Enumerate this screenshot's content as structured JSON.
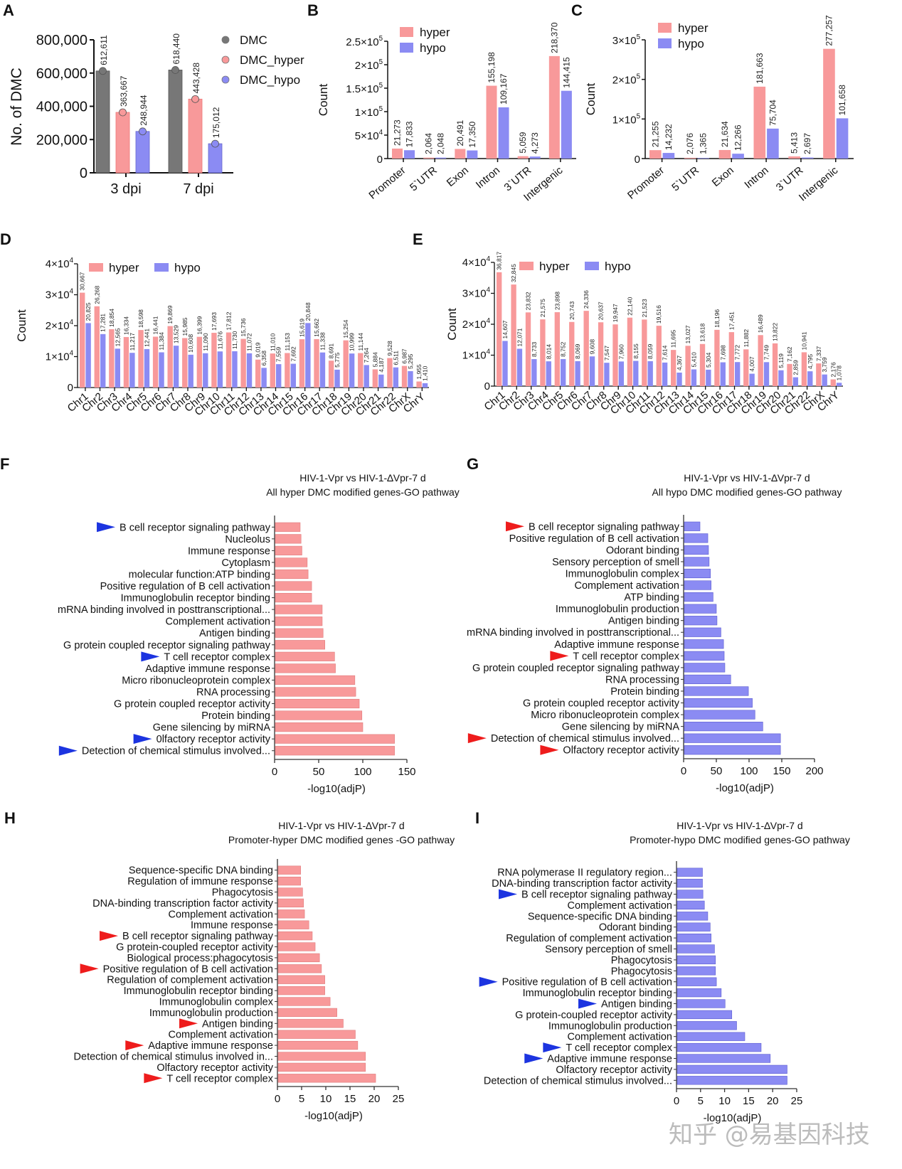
{
  "colors": {
    "dmc": "#777777",
    "hyper": "#f8999a",
    "hypo": "#8b8bf3",
    "arrow_blue": "#1c34e0",
    "arrow_red": "#ee1c1c"
  },
  "watermark": "知乎 @易基因科技",
  "chart_data": [
    {
      "id": "A",
      "panel_letter": "A",
      "type": "bar",
      "title": "",
      "xlabel": "",
      "ylabel": "No. of DMC",
      "categories": [
        "3 dpi",
        "7 dpi"
      ],
      "series": [
        {
          "name": "DMC",
          "values": [
            612611,
            618440
          ],
          "labels": [
            "612,611",
            "618,440"
          ]
        },
        {
          "name": "DMC_hyper",
          "values": [
            363667,
            443428
          ],
          "labels": [
            "363,667",
            "443,428"
          ]
        },
        {
          "name": "DMC_hypo",
          "values": [
            248944,
            175012
          ],
          "labels": [
            "248,944",
            "175,012"
          ]
        }
      ],
      "ylim": [
        0,
        800000
      ],
      "yticks": [
        0,
        200000,
        400000,
        600000,
        800000
      ],
      "ytick_labels": [
        "0",
        "200,000",
        "400,000",
        "600,000",
        "800,000"
      ],
      "legend": [
        "DMC",
        "DMC_hyper",
        "DMC_hypo"
      ],
      "legend_position": "right"
    },
    {
      "id": "B",
      "panel_letter": "B",
      "type": "bar",
      "title": "",
      "xlabel": "",
      "ylabel": "Count",
      "categories": [
        "Promoter",
        "5`UTR",
        "Exon",
        "Intron",
        "3`UTR",
        "Intergenic"
      ],
      "series": [
        {
          "name": "hyper",
          "values": [
            21273,
            2064,
            20491,
            155198,
            5059,
            218370
          ],
          "labels": [
            "21,273",
            "2,064",
            "20,491",
            "155,198",
            "5,059",
            "218,370"
          ]
        },
        {
          "name": "hypo",
          "values": [
            17833,
            2048,
            17350,
            109167,
            4273,
            144415
          ],
          "labels": [
            "17,833",
            "2,048",
            "17,350",
            "109,167",
            "4,273",
            "144,415"
          ]
        }
      ],
      "ylim": [
        0,
        250000
      ],
      "yticks": [
        0,
        50000,
        100000,
        150000,
        200000,
        250000
      ],
      "ytick_labels": [
        [
          "0",
          ""
        ],
        [
          "5×10",
          "4"
        ],
        [
          "1×10",
          "5"
        ],
        [
          "1.5×10",
          "5"
        ],
        [
          "2×10",
          "5"
        ],
        [
          "2.5×10",
          "5"
        ]
      ],
      "legend": [
        "hyper",
        "hypo"
      ],
      "legend_position": "top-left"
    },
    {
      "id": "C",
      "panel_letter": "C",
      "type": "bar",
      "title": "",
      "xlabel": "",
      "ylabel": "Count",
      "categories": [
        "Promoter",
        "5`UTR",
        "Exon",
        "Intron",
        "3`UTR",
        "Intergenic"
      ],
      "series": [
        {
          "name": "hyper",
          "values": [
            21255,
            2076,
            21634,
            181663,
            5413,
            277257
          ],
          "labels": [
            "21,255",
            "2,076",
            "21,634",
            "181,663",
            "5,413",
            "277,257"
          ]
        },
        {
          "name": "hypo",
          "values": [
            14232,
            1365,
            12266,
            75704,
            2697,
            101658
          ],
          "labels": [
            "14,232",
            "1,365",
            "12,266",
            "75,704",
            "2,697",
            "101,658"
          ]
        }
      ],
      "ylim": [
        0,
        300000
      ],
      "yticks": [
        0,
        100000,
        200000,
        300000
      ],
      "ytick_labels": [
        [
          "0",
          ""
        ],
        [
          "1×10",
          "5"
        ],
        [
          "2×10",
          "5"
        ],
        [
          "3×10",
          "5"
        ]
      ],
      "legend": [
        "hyper",
        "hypo"
      ],
      "legend_position": "top-left"
    },
    {
      "id": "D",
      "panel_letter": "D",
      "type": "bar",
      "title": "",
      "xlabel": "",
      "ylabel": "Count",
      "categories": [
        "Chr1",
        "Chr2",
        "Chr3",
        "Chr4",
        "Chr5",
        "Chr6",
        "Chr7",
        "Chr8",
        "Chr9",
        "Chr10",
        "Chr11",
        "Chr12",
        "Chr13",
        "Chr14",
        "Chr15",
        "Chr16",
        "Chr17",
        "Chr18",
        "Chr19",
        "Chr20",
        "Chr21",
        "Chr22",
        "ChrX",
        "ChrY"
      ],
      "series": [
        {
          "name": "hyper",
          "values": [
            30667,
            26268,
            18854,
            16334,
            18598,
            16441,
            19869,
            15985,
            16399,
            17693,
            17812,
            15736,
            9019,
            11010,
            11153,
            15619,
            15662,
            8691,
            15254,
            11144,
            5884,
            9528,
            6987,
            1955
          ],
          "labels": [
            "30,667",
            "26,268",
            "18,854",
            "16,334",
            "18,598",
            "16,441",
            "19,869",
            "15,985",
            "16,399",
            "17,693",
            "17,812",
            "15,736",
            "9,019",
            "11,010",
            "11,153",
            "15,619",
            "15,662",
            "8,691",
            "15,254",
            "11,144",
            "5,884",
            "9,528",
            "6,987",
            "1,955"
          ]
        },
        {
          "name": "hypo",
          "values": [
            20825,
            17281,
            12565,
            11217,
            12441,
            11384,
            13529,
            10608,
            11090,
            11676,
            11730,
            11072,
            6358,
            7559,
            7692,
            20848,
            11338,
            5775,
            10999,
            7264,
            4187,
            6511,
            5295,
            1410
          ],
          "labels": [
            "20,825",
            "17,281",
            "12,565",
            "11,217",
            "12,441",
            "11,384",
            "13,529",
            "10,608",
            "11,090",
            "11,676",
            "11,730",
            "11,072",
            "6,358",
            "7,559",
            "7,692",
            "20,848",
            "11,338",
            "5,775",
            "10,999",
            "7,264",
            "4,187",
            "6,511",
            "5,295",
            "1,410"
          ]
        }
      ],
      "ylim": [
        0,
        40000
      ],
      "yticks": [
        0,
        10000,
        20000,
        30000,
        40000
      ],
      "ytick_labels": [
        [
          "0",
          ""
        ],
        [
          "1×10",
          "4"
        ],
        [
          "2×10",
          "4"
        ],
        [
          "3×10",
          "4"
        ],
        [
          "4×10",
          "4"
        ]
      ],
      "legend": [
        "hyper",
        "hypo"
      ],
      "legend_position": "top"
    },
    {
      "id": "E",
      "panel_letter": "E",
      "type": "bar",
      "title": "",
      "xlabel": "",
      "ylabel": "Count",
      "categories": [
        "Chr1",
        "Chr2",
        "Chr3",
        "Chr4",
        "Chr5",
        "Chr6",
        "Chr7",
        "Chr8",
        "Chr9",
        "Chr10",
        "Chr11",
        "Chr12",
        "Chr13",
        "Chr14",
        "Chr15",
        "Chr16",
        "Chr17",
        "Chr18",
        "Chr19",
        "Chr20",
        "Chr21",
        "Chr22",
        "ChrX",
        "ChrY"
      ],
      "series": [
        {
          "name": "hyper",
          "values": [
            36817,
            32845,
            23832,
            21575,
            23898,
            20743,
            24336,
            20637,
            19947,
            22140,
            21523,
            19516,
            11695,
            13027,
            13618,
            18196,
            17451,
            11882,
            16489,
            13822,
            7162,
            10941,
            7337,
            2176
          ],
          "labels": [
            "36,817",
            "32,845",
            "23,832",
            "21,575",
            "23,898",
            "20,743",
            "24,336",
            "20,637",
            "19,947",
            "22,140",
            "21,523",
            "19,516",
            "11,695",
            "13,027",
            "13,618",
            "18,196",
            "17,451",
            "11,882",
            "16,489",
            "13,822",
            "7,162",
            "10,941",
            "7,337",
            "2,176"
          ]
        },
        {
          "name": "hypo",
          "values": [
            14607,
            12071,
            8733,
            8014,
            8752,
            8069,
            9608,
            7547,
            7960,
            8155,
            8059,
            7614,
            4367,
            5410,
            5304,
            7698,
            7772,
            4007,
            7749,
            5119,
            2859,
            4795,
            3759,
            1078
          ],
          "labels": [
            "14,607",
            "12,071",
            "8,733",
            "8,014",
            "8,752",
            "8,069",
            "9,608",
            "7,547",
            "7,960",
            "8,155",
            "8,059",
            "7,614",
            "4,367",
            "5,410",
            "5,304",
            "7,698",
            "7,772",
            "4,007",
            "7,749",
            "5,119",
            "2,859",
            "4,795",
            "3,759",
            "1,078"
          ]
        }
      ],
      "ylim": [
        0,
        40000
      ],
      "yticks": [
        0,
        10000,
        20000,
        30000,
        40000
      ],
      "ytick_labels": [
        [
          "0",
          ""
        ],
        [
          "1×10",
          "4"
        ],
        [
          "2×10",
          "4"
        ],
        [
          "3×10",
          "4"
        ],
        [
          "4×10",
          "4"
        ]
      ],
      "legend": [
        "hyper",
        "hypo"
      ],
      "legend_position": "top"
    },
    {
      "id": "F",
      "panel_letter": "F",
      "type": "bar",
      "orientation": "horizontal",
      "title": "HIV-1-Vpr vs HIV-1-∆Vpr-7 d",
      "subtitle": "All hyper DMC modified genes-GO pathway",
      "xlabel": "-log10(adjP)",
      "ylabel": "",
      "xlim": [
        0,
        150
      ],
      "xticks": [
        0,
        50,
        100,
        150
      ],
      "color": "hyper",
      "arrow_color": "arrow_blue",
      "categories": [
        "B cell receptor signaling pathway",
        "Nucleolus",
        "Immune response",
        "Cytoplasm",
        "molecular function:ATP binding",
        "Positive regulation of B cell activation",
        "Immunoglobulin receptor binding",
        "mRNA binding involved in posttranscriptional...",
        "Complement activation",
        "Antigen binding",
        "G protein coupled receptor signaling pathway",
        "T cell receptor complex",
        "Adaptive immune response",
        "Micro ribonucleoprotein complex",
        "RNA processing",
        "G protein coupled receptor activity",
        "Protein binding",
        "Gene silencing by miRNA",
        "0lfactory receptor activity",
        "Detection of chemical stimulus involved..."
      ],
      "values": [
        29,
        30,
        31,
        37,
        38,
        42,
        42,
        54,
        54,
        55,
        57,
        68,
        69,
        91,
        92,
        96,
        99,
        100,
        136,
        136
      ],
      "highlighted": [
        0,
        11,
        18,
        19
      ]
    },
    {
      "id": "G",
      "panel_letter": "G",
      "type": "bar",
      "orientation": "horizontal",
      "title": "HIV-1-Vpr vs HIV-1-∆Vpr-7 d",
      "subtitle": "All hypo DMC modified genes-GO pathway",
      "xlabel": "-log10(adjP)",
      "ylabel": "",
      "xlim": [
        0,
        200
      ],
      "xticks": [
        0,
        50,
        100,
        150,
        200
      ],
      "color": "hypo",
      "arrow_color": "arrow_red",
      "categories": [
        "B cell receptor signaling pathway",
        "Positive regulation of B cell activation",
        "Odorant binding",
        "Sensory perception of smell",
        "Immunoglobulin complex",
        "Complement activation",
        "ATP binding",
        "Immunoglobulin production",
        "Antigen binding",
        "mRNA binding involved in posttranscriptional...",
        "Adaptive immune response",
        "T cell receptor complex",
        "G protein coupled receptor signaling pathway",
        "RNA processing",
        "Protein binding",
        "G protein coupled receptor activity",
        "Micro ribonucleoprotein complex",
        "Gene silencing by miRNA",
        "Detection of chemical stimulus involved...",
        "Olfactory receptor activity"
      ],
      "values": [
        25,
        37,
        38,
        39,
        41,
        42,
        45,
        50,
        51,
        57,
        61,
        62,
        63,
        72,
        99,
        105,
        109,
        121,
        148,
        148
      ],
      "highlighted": [
        0,
        11,
        18,
        19
      ]
    },
    {
      "id": "H",
      "panel_letter": "H",
      "type": "bar",
      "orientation": "horizontal",
      "title": "HIV-1-Vpr vs HIV-1-∆Vpr-7 d",
      "subtitle": "Promoter-hyper DMC modified genes -GO pathway",
      "xlabel": "-log10(adjP)",
      "ylabel": "",
      "xlim": [
        0,
        25
      ],
      "xticks": [
        0,
        5,
        10,
        15,
        20,
        25
      ],
      "color": "hyper",
      "arrow_color": "arrow_red",
      "categories": [
        "Sequence-specific DNA binding",
        "Regulation of immune response",
        "Phagocytosis",
        "DNA-binding transcription factor activity",
        "Complement activation",
        "Immune response",
        "B cell receptor signaling pathway",
        "G protein-coupled receptor activity",
        "Biological process:phagocytosis",
        "Positive regulation of B cell activation",
        "Regulation of complement activation",
        "Immunoglobulin receptor binding",
        "Immunoglobulin complex",
        "Immunoglobulin production",
        "Antigen binding",
        "Complement activation",
        "Adaptive immune response",
        "Detection of chemical stimulus involved in...",
        "Olfactory receptor activity",
        "T cell receptor complex"
      ],
      "values": [
        4.8,
        4.8,
        5.2,
        5.4,
        5.6,
        6.5,
        7.2,
        7.8,
        8.7,
        9.1,
        9.8,
        9.8,
        10.9,
        12.3,
        13.6,
        16.1,
        16.6,
        18.2,
        18.2,
        20.3
      ],
      "highlighted": [
        6,
        9,
        14,
        16,
        19
      ]
    },
    {
      "id": "I",
      "panel_letter": "I",
      "type": "bar",
      "orientation": "horizontal",
      "title": "HIV-1-Vpr vs HIV-1-∆Vpr-7 d",
      "subtitle": "Promoter-hypo DMC modified genes-GO pathway",
      "xlabel": "-log10(adjP)",
      "ylabel": "",
      "xlim": [
        0,
        25
      ],
      "xticks": [
        0,
        5,
        10,
        15,
        20,
        25
      ],
      "color": "hypo",
      "arrow_color": "arrow_blue",
      "categories": [
        "RNA polymerase II regulatory region...",
        "DNA-binding transcription factor activity",
        "B cell receptor signaling pathway",
        "Complement activation",
        "Sequence-specific DNA binding",
        "Odorant binding",
        "Regulation of complement activation",
        "Sensory perception of smell",
        "Phagocytosis",
        "Phagocytosis",
        "Positive regulation of B cell activation",
        "Immunoglobulin receptor binding",
        "Antigen binding",
        "G protein-coupled receptor activity",
        "Immunoglobulin production",
        "Complement activation",
        "T cell receptor complex",
        "Adaptive immune response",
        "Olfactory receptor activity",
        "Detection of chemical stimulus involved..."
      ],
      "values": [
        5.4,
        5.4,
        5.5,
        5.8,
        6.5,
        7.0,
        7.2,
        7.9,
        8.1,
        8.1,
        8.3,
        9.3,
        10.1,
        11.5,
        12.5,
        14.2,
        17.6,
        19.5,
        23.0,
        23.0
      ],
      "highlighted": [
        2,
        10,
        12,
        16,
        17
      ]
    }
  ]
}
